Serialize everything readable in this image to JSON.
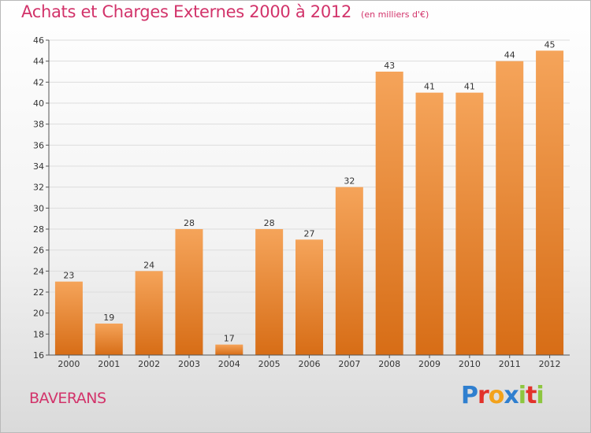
{
  "chart_data": {
    "type": "bar",
    "title": "Achats et Charges Externes 2000 à 2012",
    "subtitle": "(en milliers d'€)",
    "categories": [
      "2000",
      "2001",
      "2002",
      "2003",
      "2004",
      "2005",
      "2006",
      "2007",
      "2008",
      "2009",
      "2010",
      "2011",
      "2012"
    ],
    "values": [
      23,
      19,
      24,
      28,
      17,
      28,
      27,
      32,
      43,
      41,
      41,
      44,
      45
    ],
    "ylim": [
      16,
      46
    ],
    "yticks": [
      16,
      18,
      20,
      22,
      24,
      26,
      28,
      30,
      32,
      34,
      36,
      38,
      40,
      42,
      44,
      46
    ],
    "grid": true,
    "xlabel": "",
    "ylabel": ""
  },
  "commune": "BAVERANS",
  "brand": {
    "letters": [
      "P",
      "r",
      "o",
      "x",
      "i",
      "t",
      "i"
    ],
    "colors": [
      "#2f7fcf",
      "#e2322b",
      "#f3a21b",
      "#2f7fcf",
      "#8dc63f",
      "#e2322b",
      "#8dc63f"
    ]
  },
  "colors": {
    "title": "#d2336a",
    "bar_light": "#f5a45a",
    "bar_dark": "#d76d16",
    "grid": "#dddddd"
  }
}
